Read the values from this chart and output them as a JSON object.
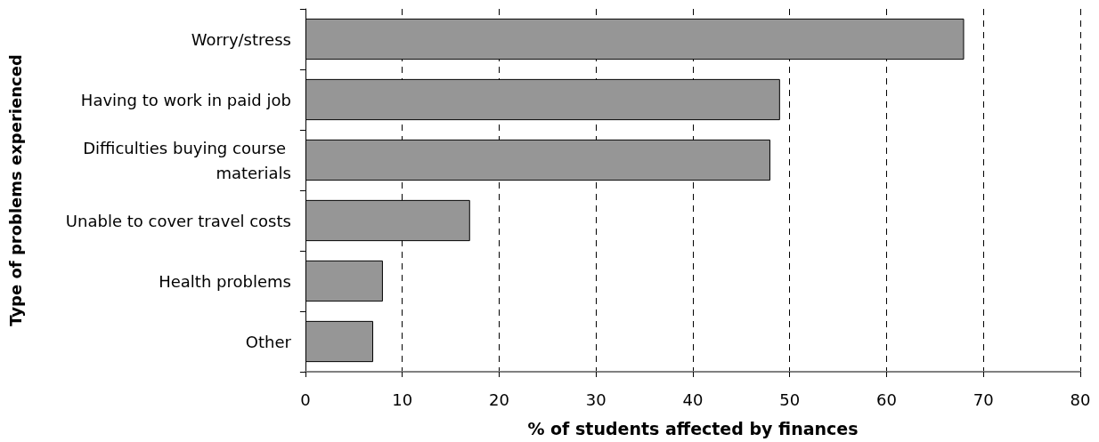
{
  "chart_data": {
    "type": "bar",
    "orientation": "horizontal",
    "categories": [
      "Worry/stress",
      "Having to work in paid job",
      "Difficulties buying course materials",
      "Unable to cover travel costs",
      "Health problems",
      "Other"
    ],
    "values": [
      68,
      49,
      48,
      17,
      8,
      7
    ],
    "color": "#969696",
    "xlabel": "% of students affected by finances",
    "ylabel": "Type of problems experienced",
    "xlim": [
      0,
      80
    ],
    "xticks": [
      0,
      10,
      20,
      30,
      40,
      50,
      60,
      70,
      80
    ],
    "grid": "x"
  }
}
